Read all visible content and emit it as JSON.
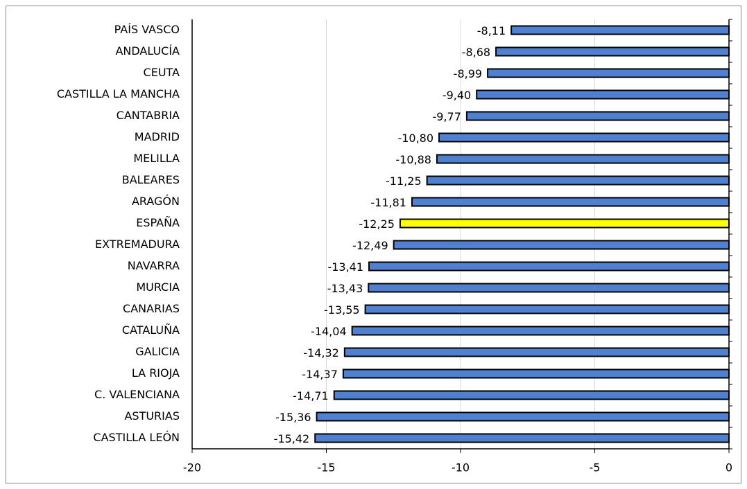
{
  "chart_data": {
    "type": "bar",
    "orientation": "horizontal",
    "categories": [
      "PAÍS VASCO",
      "ANDALUCÍA",
      "CEUTA",
      "CASTILLA LA MANCHA",
      "CANTABRIA",
      "MADRID",
      "MELILLA",
      "BALEARES",
      "ARAGÓN",
      "ESPAÑA",
      "EXTREMADURA",
      "NAVARRA",
      "MURCIA",
      "CANARIAS",
      "CATALUÑA",
      "GALICIA",
      "LA RIOJA",
      "C. VALENCIANA",
      "ASTURIAS",
      "CASTILLA LEÓN"
    ],
    "values": [
      -8.11,
      -8.68,
      -8.99,
      -9.4,
      -9.77,
      -10.8,
      -10.88,
      -11.25,
      -11.81,
      -12.25,
      -12.49,
      -13.41,
      -13.43,
      -13.55,
      -14.04,
      -14.32,
      -14.37,
      -14.71,
      -15.36,
      -15.42
    ],
    "value_labels": [
      "-8,11",
      "-8,68",
      "-8,99",
      "-9,40",
      "-9,77",
      "-10,80",
      "-10,88",
      "-11,25",
      "-11,81",
      "-12,25",
      "-12,49",
      "-13,41",
      "-13,43",
      "-13,55",
      "-14,04",
      "-14,32",
      "-14,37",
      "-14,71",
      "-15,36",
      "-15,42"
    ],
    "colors": [
      "#4f81d0",
      "#4f81d0",
      "#4f81d0",
      "#4f81d0",
      "#4f81d0",
      "#4f81d0",
      "#4f81d0",
      "#4f81d0",
      "#4f81d0",
      "#ffff00",
      "#4f81d0",
      "#4f81d0",
      "#4f81d0",
      "#4f81d0",
      "#4f81d0",
      "#4f81d0",
      "#4f81d0",
      "#4f81d0",
      "#4f81d0",
      "#4f81d0"
    ],
    "xlim": [
      -20,
      0
    ],
    "xticks": [
      -20,
      -15,
      -10,
      -5,
      0
    ],
    "grid": true
  }
}
